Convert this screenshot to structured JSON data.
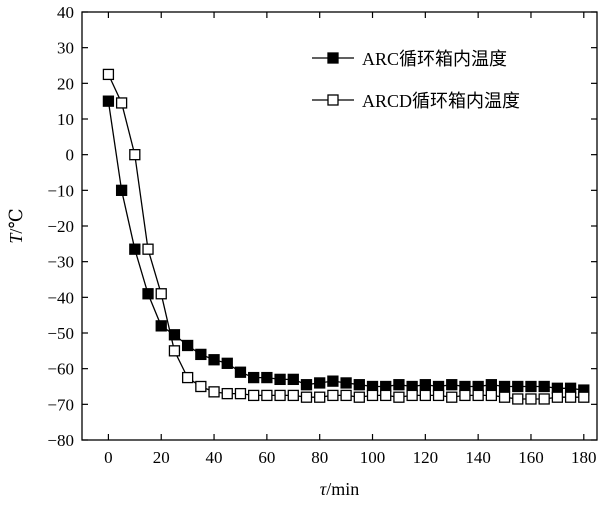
{
  "chart_data": {
    "type": "line",
    "xlabel": "τ/min",
    "xlabel_italic": "τ",
    "xlabel_rest": "/min",
    "ylabel": "T/℃",
    "ylabel_italic": "T",
    "ylabel_rest": "/℃",
    "xlim": [
      -10,
      185
    ],
    "ylim": [
      -80,
      40
    ],
    "xticks": [
      0,
      20,
      40,
      60,
      80,
      100,
      120,
      140,
      160,
      180
    ],
    "yticks": [
      40,
      30,
      20,
      10,
      0,
      -10,
      -20,
      -30,
      -40,
      -50,
      -60,
      -70,
      -80
    ],
    "grid": false,
    "legend_position": "top-right",
    "series": [
      {
        "name": "ARC循环箱内温度",
        "marker": "filled-square",
        "color": "#000000",
        "x": [
          0,
          5,
          10,
          15,
          20,
          25,
          30,
          35,
          40,
          45,
          50,
          55,
          60,
          65,
          70,
          75,
          80,
          85,
          90,
          95,
          100,
          105,
          110,
          115,
          120,
          125,
          130,
          135,
          140,
          145,
          150,
          155,
          160,
          165,
          170,
          175,
          180
        ],
        "y": [
          15,
          -10,
          -26.5,
          -39,
          -48,
          -50.5,
          -53.5,
          -56,
          -57.5,
          -58.5,
          -61,
          -62.5,
          -62.5,
          -63,
          -63,
          -64.5,
          -64,
          -63.5,
          -64,
          -64.5,
          -65,
          -65,
          -64.5,
          -65,
          -64.5,
          -65,
          -64.5,
          -65,
          -65,
          -64.5,
          -65,
          -65,
          -65,
          -65,
          -65.5,
          -65.5,
          -66
        ]
      },
      {
        "name": "ARCD循环箱内温度",
        "marker": "open-square",
        "color": "#000000",
        "x": [
          0,
          5,
          10,
          15,
          20,
          25,
          30,
          35,
          40,
          45,
          50,
          55,
          60,
          65,
          70,
          75,
          80,
          85,
          90,
          95,
          100,
          105,
          110,
          115,
          120,
          125,
          130,
          135,
          140,
          145,
          150,
          155,
          160,
          165,
          170,
          175,
          180
        ],
        "y": [
          22.5,
          14.5,
          0,
          -26.5,
          -39,
          -55,
          -62.5,
          -65,
          -66.5,
          -67,
          -67,
          -67.5,
          -67.5,
          -67.5,
          -67.5,
          -68,
          -68,
          -67.5,
          -67.5,
          -68,
          -67.5,
          -67.5,
          -68,
          -67.5,
          -67.5,
          -67.5,
          -68,
          -67.5,
          -67.5,
          -67.5,
          -68,
          -68.5,
          -68.5,
          -68.5,
          -68,
          -68,
          -68
        ]
      }
    ]
  }
}
